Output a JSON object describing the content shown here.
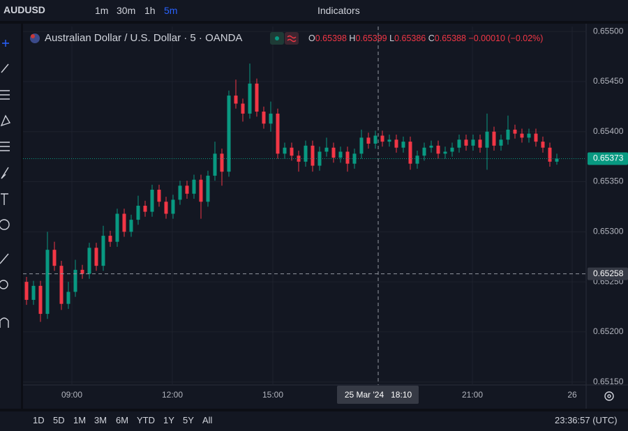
{
  "toolbar": {
    "symbol": "AUDUSD",
    "intervals": [
      "1m",
      "30m",
      "1h",
      "5m"
    ],
    "indicators": "Indicators"
  },
  "legend": {
    "title": "Australian Dollar / U.S. Dollar · 5 · OANDA",
    "open_label": "O",
    "open": "0.65398",
    "high_label": "H",
    "high": "0.65399",
    "low_label": "L",
    "low": "0.65386",
    "close_label": "C",
    "close": "0.65388",
    "change": "−0.00010 (−0.02%)"
  },
  "chart_data": {
    "type": "candlestick",
    "up_color": "#089981",
    "down_color": "#f23645",
    "open": [
      0.6525,
      0.65232,
      0.65246,
      0.65218,
      0.65282,
      0.65266,
      0.65228,
      0.6524,
      0.65262,
      0.65258,
      0.65284,
      0.65266,
      0.65296,
      0.6529,
      0.65318,
      0.653,
      0.65312,
      0.65326,
      0.6532,
      0.65342,
      0.6533,
      0.65318,
      0.65332,
      0.65346,
      0.65338,
      0.65352,
      0.6533,
      0.65356,
      0.65378,
      0.6536,
      0.65436,
      0.65428,
      0.65418,
      0.65448,
      0.6542,
      0.65408,
      0.65418,
      0.65378,
      0.65384,
      0.65376,
      0.6537,
      0.65386,
      0.65366,
      0.6538,
      0.65384,
      0.65374,
      0.6538,
      0.65368,
      0.65378,
      0.65394,
      0.65388,
      0.65396,
      0.6539,
      0.65392,
      0.65384,
      0.6539,
      0.65368,
      0.65376,
      0.65384,
      0.65386,
      0.65378,
      0.6538,
      0.65384,
      0.65392,
      0.65386,
      0.65392,
      0.65384,
      0.654,
      0.65386,
      0.65392,
      0.65402,
      0.65398,
      0.65394,
      0.65398,
      0.6539,
      0.65384,
      0.6537
    ],
    "high": [
      0.65255,
      0.65251,
      0.65251,
      0.653,
      0.6529,
      0.65271,
      0.6525,
      0.65272,
      0.65267,
      0.65289,
      0.65289,
      0.65306,
      0.65301,
      0.65323,
      0.65323,
      0.65317,
      0.65336,
      0.65331,
      0.65347,
      0.65347,
      0.65335,
      0.65337,
      0.65351,
      0.65351,
      0.65357,
      0.65357,
      0.65361,
      0.6539,
      0.65383,
      0.65441,
      0.65452,
      0.65433,
      0.65468,
      0.65453,
      0.65425,
      0.6543,
      0.65423,
      0.65389,
      0.65389,
      0.65381,
      0.65391,
      0.65391,
      0.65385,
      0.65394,
      0.65389,
      0.65385,
      0.65385,
      0.65383,
      0.65402,
      0.65399,
      0.65401,
      0.65401,
      0.65397,
      0.65397,
      0.65395,
      0.65395,
      0.65381,
      0.65389,
      0.65391,
      0.65391,
      0.65385,
      0.65389,
      0.65397,
      0.65397,
      0.65397,
      0.65397,
      0.65418,
      0.65405,
      0.65397,
      0.65416,
      0.65407,
      0.65403,
      0.65403,
      0.65403,
      0.65395,
      0.65389,
      0.65378
    ],
    "low": [
      0.65227,
      0.65227,
      0.6521,
      0.65213,
      0.65261,
      0.65222,
      0.65223,
      0.65235,
      0.65253,
      0.65253,
      0.65261,
      0.65261,
      0.65285,
      0.65285,
      0.65295,
      0.65295,
      0.65307,
      0.65315,
      0.65315,
      0.65325,
      0.65313,
      0.65313,
      0.65327,
      0.65333,
      0.65333,
      0.65313,
      0.65325,
      0.65351,
      0.65346,
      0.65355,
      0.65423,
      0.6541,
      0.65413,
      0.65415,
      0.65403,
      0.654,
      0.65373,
      0.65373,
      0.65371,
      0.6536,
      0.65365,
      0.6536,
      0.65361,
      0.65375,
      0.65369,
      0.65369,
      0.6536,
      0.65363,
      0.65373,
      0.65383,
      0.65383,
      0.65385,
      0.65385,
      0.65379,
      0.65379,
      0.65362,
      0.65363,
      0.65371,
      0.65379,
      0.65373,
      0.65373,
      0.65375,
      0.65379,
      0.65381,
      0.65381,
      0.65379,
      0.65362,
      0.65381,
      0.65381,
      0.65387,
      0.65393,
      0.65389,
      0.65389,
      0.65385,
      0.65379,
      0.65365,
      0.65367
    ],
    "close": [
      0.65232,
      0.65246,
      0.65218,
      0.65282,
      0.65266,
      0.65228,
      0.6524,
      0.65262,
      0.65258,
      0.65284,
      0.65266,
      0.65296,
      0.6529,
      0.65318,
      0.653,
      0.65312,
      0.65326,
      0.6532,
      0.65342,
      0.6533,
      0.65318,
      0.65332,
      0.65346,
      0.65338,
      0.65352,
      0.6533,
      0.65356,
      0.65378,
      0.6536,
      0.65436,
      0.65428,
      0.65418,
      0.65448,
      0.6542,
      0.65408,
      0.65418,
      0.65378,
      0.65384,
      0.65376,
      0.6537,
      0.65386,
      0.65366,
      0.6538,
      0.65384,
      0.65374,
      0.6538,
      0.65368,
      0.65378,
      0.65394,
      0.65388,
      0.65396,
      0.6539,
      0.65392,
      0.65384,
      0.6539,
      0.65368,
      0.65376,
      0.65384,
      0.65386,
      0.65378,
      0.6538,
      0.65384,
      0.65392,
      0.65386,
      0.65392,
      0.65384,
      0.654,
      0.65386,
      0.65392,
      0.65402,
      0.65398,
      0.65394,
      0.65398,
      0.6539,
      0.65384,
      0.6537,
      0.65373
    ],
    "ylim": [
      0.65147,
      0.65505
    ],
    "yticks": [
      {
        "value": 0.655,
        "label": "0.65500"
      },
      {
        "value": 0.6545,
        "label": "0.65450"
      },
      {
        "value": 0.654,
        "label": "0.65400"
      },
      {
        "value": 0.6535,
        "label": "0.65350"
      },
      {
        "value": 0.653,
        "label": "0.65300"
      },
      {
        "value": 0.6525,
        "label": "0.65250"
      },
      {
        "value": 0.652,
        "label": "0.65200"
      },
      {
        "value": 0.6515,
        "label": "0.65150"
      }
    ],
    "xtick_labels": [
      "09:00",
      "12:00",
      "15:00",
      "21:00",
      "26"
    ],
    "grid": true,
    "last_price": 0.65373,
    "crosshair": {
      "price": 0.65258,
      "time": "25 Mar '24   18:10"
    }
  },
  "range_buttons": [
    "1D",
    "5D",
    "1M",
    "3M",
    "6M",
    "YTD",
    "1Y",
    "5Y",
    "All"
  ],
  "clock": "23:36:57 (UTC)"
}
